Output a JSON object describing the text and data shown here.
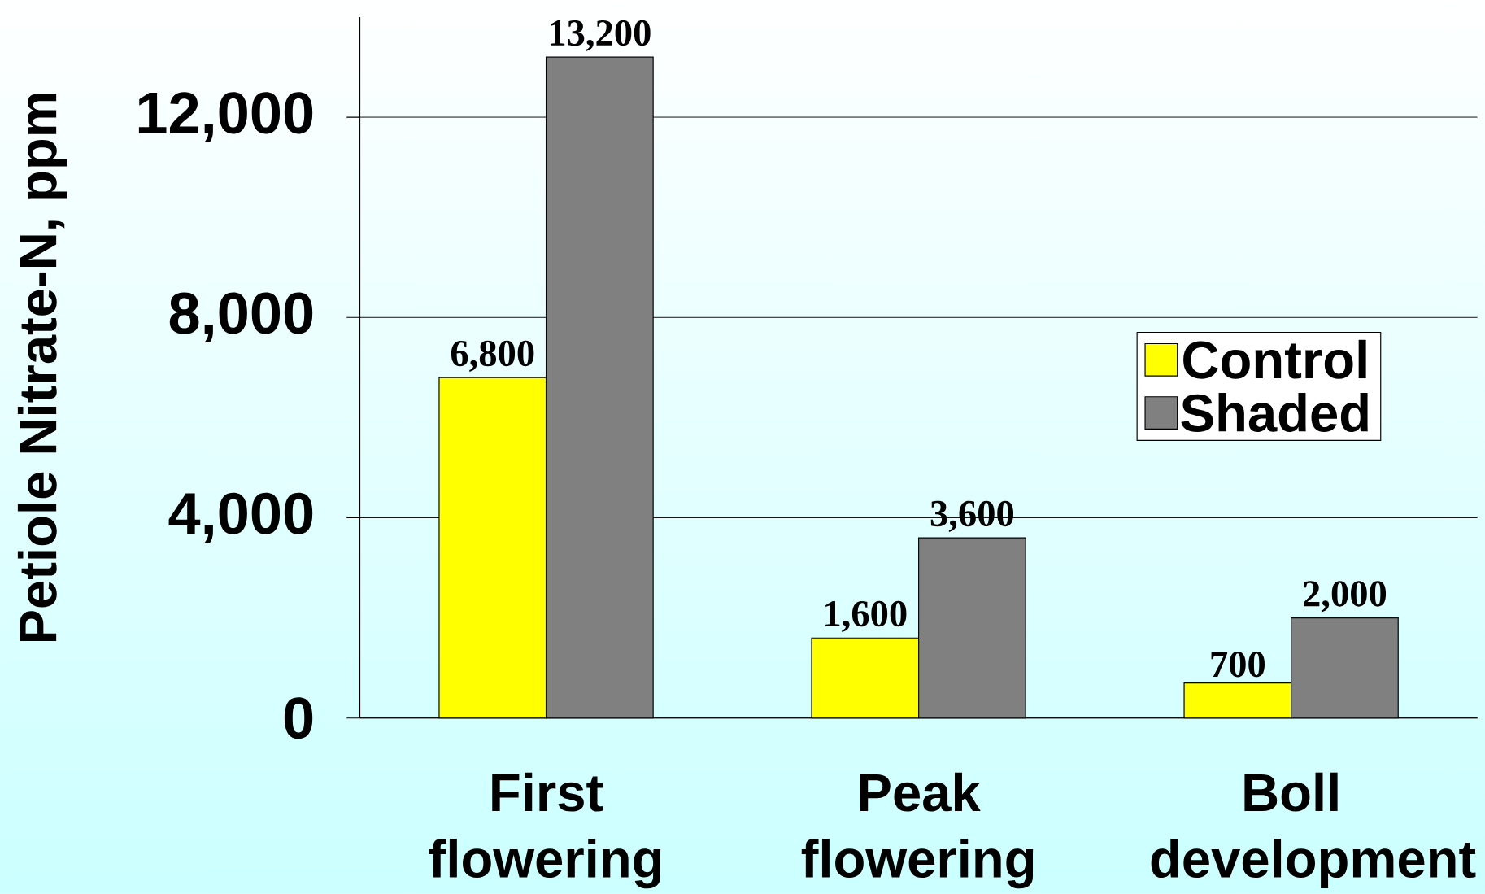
{
  "chart_data": {
    "type": "bar",
    "ylabel": "Petiole Nitrate-N, ppm",
    "categories": [
      "First flowering",
      "Peak flowering",
      "Boll development"
    ],
    "series": [
      {
        "name": "Control",
        "color": "#ffff00",
        "values": [
          6800,
          1600,
          700
        ],
        "value_labels": [
          "6,800",
          "1,600",
          "700"
        ]
      },
      {
        "name": "Shaded",
        "color": "#808080",
        "values": [
          13200,
          3600,
          2000
        ],
        "value_labels": [
          "13,200",
          "3,600",
          "2,000"
        ]
      }
    ],
    "ylim": [
      0,
      14000
    ],
    "yticks": [
      {
        "value": 0,
        "label": "0"
      },
      {
        "value": 4000,
        "label": "4,000"
      },
      {
        "value": 8000,
        "label": "8,000"
      },
      {
        "value": 12000,
        "label": "12,000"
      }
    ],
    "grid": "y",
    "legend": "right"
  }
}
